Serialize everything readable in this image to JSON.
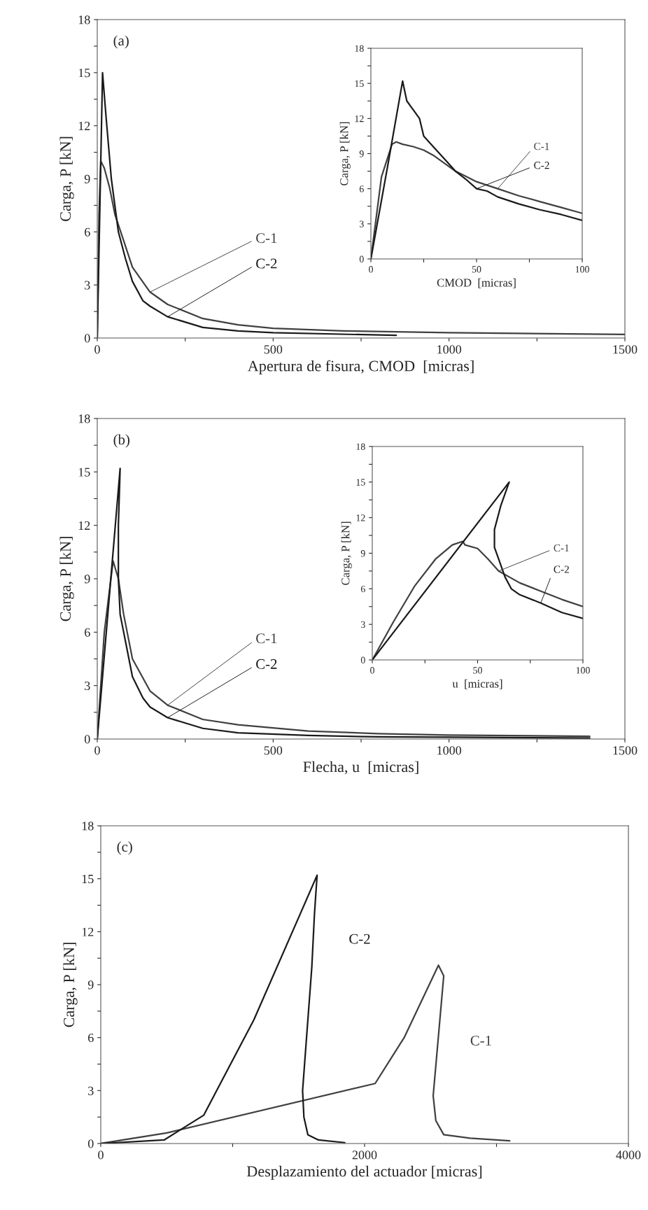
{
  "chart_data": [
    {
      "type": "line",
      "xlabel": "Apertura de fisura, CMOD  [micras]",
      "ylabel": "Carga, P [kN]",
      "annotations": [
        "(a)"
      ],
      "xlim": [
        0,
        1500
      ],
      "ylim": [
        0,
        18
      ],
      "xticks": [
        0,
        {
          "value": 250,
          "label": null
        },
        500,
        {
          "value": 750,
          "label": null
        },
        1000,
        {
          "value": 1250,
          "label": null
        },
        1500
      ],
      "yticks": [
        0,
        {
          "value": 1.5,
          "label": null
        },
        3,
        {
          "value": 4.5,
          "label": null
        },
        6,
        {
          "value": 7.5,
          "label": null
        },
        9,
        {
          "value": 10.5,
          "label": null
        },
        12,
        {
          "value": 13.5,
          "label": null
        },
        15,
        {
          "value": 16.5,
          "label": null
        },
        18
      ],
      "series": [
        {
          "name": "C-1",
          "color": "#404040",
          "x": [
            0,
            5,
            10,
            20,
            35,
            50,
            75,
            100,
            150,
            200,
            300,
            400,
            500,
            700,
            1000,
            1500
          ],
          "values": [
            0,
            7,
            10,
            9.6,
            8.5,
            7,
            5.5,
            4,
            2.6,
            1.9,
            1.1,
            0.75,
            0.55,
            0.4,
            0.3,
            0.2
          ]
        },
        {
          "name": "C-2",
          "color": "#1a1a1a",
          "x": [
            0,
            15,
            25,
            40,
            60,
            80,
            100,
            130,
            150,
            200,
            300,
            400,
            500,
            850
          ],
          "values": [
            0,
            15,
            12.5,
            9,
            6,
            4.5,
            3.2,
            2.1,
            1.8,
            1.2,
            0.6,
            0.4,
            0.3,
            0.15
          ]
        }
      ]
    },
    {
      "type": "line",
      "xlabel": "CMOD  [micras]",
      "ylabel": "Carga, P [kN]",
      "xlim": [
        0,
        100
      ],
      "ylim": [
        0,
        18
      ],
      "xticks": [
        0,
        {
          "value": 25,
          "label": null
        },
        50,
        {
          "value": 75,
          "label": null
        },
        100
      ],
      "yticks": [
        0,
        {
          "value": 1.5,
          "label": null
        },
        3,
        {
          "value": 4.5,
          "label": null
        },
        6,
        {
          "value": 7.5,
          "label": null
        },
        9,
        {
          "value": 10.5,
          "label": null
        },
        12,
        {
          "value": 13.5,
          "label": null
        },
        15,
        {
          "value": 16.5,
          "label": null
        },
        18
      ],
      "series": [
        {
          "name": "C-1",
          "color": "#404040",
          "x": [
            0,
            5,
            10,
            12,
            15,
            20,
            25,
            30,
            40,
            50,
            60,
            70,
            80,
            90,
            100
          ],
          "values": [
            0,
            7,
            9.8,
            10,
            9.8,
            9.6,
            9.3,
            8.8,
            7.5,
            6.6,
            6,
            5.4,
            4.9,
            4.4,
            3.9
          ]
        },
        {
          "name": "C-2",
          "color": "#1a1a1a",
          "x": [
            0,
            8,
            15,
            17,
            19,
            21,
            23,
            25,
            30,
            35,
            40,
            45,
            50,
            55,
            60,
            70,
            80,
            90,
            100
          ],
          "values": [
            0,
            8,
            15.2,
            13.5,
            13,
            12.5,
            12,
            10.5,
            9.5,
            8.5,
            7.5,
            6.8,
            6,
            5.8,
            5.3,
            4.7,
            4.2,
            3.8,
            3.3
          ]
        }
      ]
    },
    {
      "type": "line",
      "xlabel": "Flecha, u  [micras]",
      "ylabel": "Carga, P [kN]",
      "annotations": [
        "(b)"
      ],
      "xlim": [
        0,
        1500
      ],
      "ylim": [
        0,
        18
      ],
      "xticks": [
        0,
        {
          "value": 250,
          "label": null
        },
        500,
        {
          "value": 750,
          "label": null
        },
        1000,
        {
          "value": 1250,
          "label": null
        },
        1500
      ],
      "yticks": [
        0,
        {
          "value": 1.5,
          "label": null
        },
        3,
        {
          "value": 4.5,
          "label": null
        },
        6,
        {
          "value": 7.5,
          "label": null
        },
        9,
        {
          "value": 10.5,
          "label": null
        },
        12,
        {
          "value": 13.5,
          "label": null
        },
        15,
        {
          "value": 16.5,
          "label": null
        },
        18
      ],
      "series": [
        {
          "name": "C-1",
          "color": "#404040",
          "x": [
            0,
            20,
            45,
            60,
            75,
            100,
            150,
            200,
            300,
            400,
            600,
            800,
            1000,
            1400
          ],
          "values": [
            0,
            6,
            10,
            9,
            7,
            4.5,
            2.7,
            1.9,
            1.1,
            0.8,
            0.45,
            0.3,
            0.22,
            0.15
          ]
        },
        {
          "name": "C-2",
          "color": "#1a1a1a",
          "x": [
            0,
            65,
            60,
            60,
            65,
            80,
            100,
            130,
            150,
            200,
            300,
            400,
            600,
            800,
            1000,
            1400
          ],
          "values": [
            0,
            15.2,
            12,
            9,
            7,
            5.5,
            3.5,
            2.3,
            1.8,
            1.2,
            0.6,
            0.35,
            0.2,
            0.12,
            0.1,
            0.05
          ]
        }
      ]
    },
    {
      "type": "line",
      "xlabel": "u  [micras]",
      "ylabel": "Carga, P [kN]",
      "xlim": [
        0,
        100
      ],
      "ylim": [
        0,
        18
      ],
      "xticks": [
        0,
        {
          "value": 25,
          "label": null
        },
        50,
        {
          "value": 75,
          "label": null
        },
        100
      ],
      "yticks": [
        0,
        {
          "value": 1.5,
          "label": null
        },
        3,
        {
          "value": 4.5,
          "label": null
        },
        6,
        {
          "value": 7.5,
          "label": null
        },
        9,
        {
          "value": 10.5,
          "label": null
        },
        12,
        {
          "value": 13.5,
          "label": null
        },
        15,
        {
          "value": 16.5,
          "label": null
        },
        18
      ],
      "series": [
        {
          "name": "C-1",
          "color": "#404040",
          "x": [
            0,
            10,
            20,
            30,
            38,
            43,
            44,
            50,
            55,
            60,
            70,
            80,
            90,
            100
          ],
          "values": [
            0,
            3.2,
            6.2,
            8.5,
            9.7,
            10,
            9.7,
            9.4,
            8.5,
            7.5,
            6.5,
            5.8,
            5.1,
            4.5
          ]
        },
        {
          "name": "C-2",
          "color": "#1a1a1a",
          "x": [
            0,
            65,
            61,
            58,
            58,
            60,
            63,
            66,
            70,
            80,
            90,
            100
          ],
          "values": [
            0,
            15,
            13,
            11,
            9.5,
            8.5,
            7,
            6,
            5.5,
            4.8,
            4,
            3.5
          ]
        }
      ]
    },
    {
      "type": "line",
      "xlabel": "Desplazamiento del actuador [micras]",
      "ylabel": "Carga, P [kN]",
      "annotations": [
        "(c)"
      ],
      "xlim": [
        0,
        4000
      ],
      "ylim": [
        0,
        18
      ],
      "xticks": [
        0,
        {
          "value": 1000,
          "label": null
        },
        2000,
        {
          "value": 3000,
          "label": null
        },
        4000
      ],
      "yticks": [
        0,
        {
          "value": 1.5,
          "label": null
        },
        3,
        {
          "value": 4.5,
          "label": null
        },
        6,
        {
          "value": 7.5,
          "label": null
        },
        9,
        {
          "value": 10.5,
          "label": null
        },
        12,
        {
          "value": 13.5,
          "label": null
        },
        15,
        {
          "value": 16.5,
          "label": null
        },
        18
      ],
      "series": [
        {
          "name": "C-1",
          "color": "#404040",
          "x": [
            0,
            500,
            2080,
            2300,
            2560,
            2600,
            2520,
            2540,
            2600,
            2800,
            3000,
            3100
          ],
          "values": [
            0,
            0.6,
            3.4,
            6,
            10.1,
            9.5,
            2.7,
            1.3,
            0.5,
            0.3,
            0.2,
            0.15
          ]
        },
        {
          "name": "C-2",
          "color": "#1a1a1a",
          "x": [
            0,
            480,
            780,
            1160,
            1500,
            1640,
            1620,
            1600,
            1570,
            1550,
            1530,
            1540,
            1570,
            1650,
            1850
          ],
          "values": [
            0,
            0.2,
            1.6,
            7,
            12.8,
            15.2,
            13,
            10,
            7,
            5,
            3,
            1.5,
            0.5,
            0.2,
            0.05
          ]
        }
      ]
    }
  ]
}
